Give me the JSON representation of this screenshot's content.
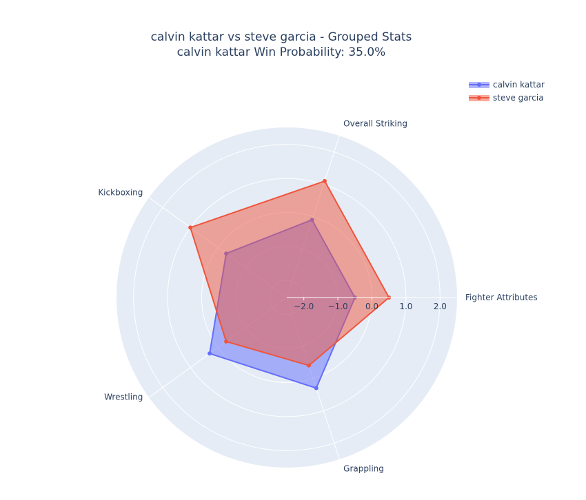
{
  "chart_data": {
    "type": "radar",
    "title_line1": "calvin kattar vs steve garcia - Grouped Stats",
    "title_line2": "calvin kattar Win Probability: 35.0%",
    "categories": [
      "Fighter Attributes",
      "Overall Striking",
      "Kickboxing",
      "Wrestling",
      "Grappling"
    ],
    "radial_range": [
      -2.5,
      2.5
    ],
    "radial_ticks": [
      -2,
      -1,
      0,
      1,
      2
    ],
    "radial_tick_labels": [
      "−2.0",
      "−1.0",
      "0.0",
      "1.0",
      "2.0"
    ],
    "series": [
      {
        "name": "calvin kattar",
        "color": "#636efa",
        "values": [
          -0.5,
          -0.1,
          -0.3,
          0.3,
          0.3
        ]
      },
      {
        "name": "steve garcia",
        "color": "#ef553b",
        "values": [
          0.5,
          1.1,
          1.0,
          -0.3,
          -0.4
        ]
      }
    ],
    "legend_position": "top-right",
    "polar_background": "#e5ecf6",
    "grid": true
  }
}
